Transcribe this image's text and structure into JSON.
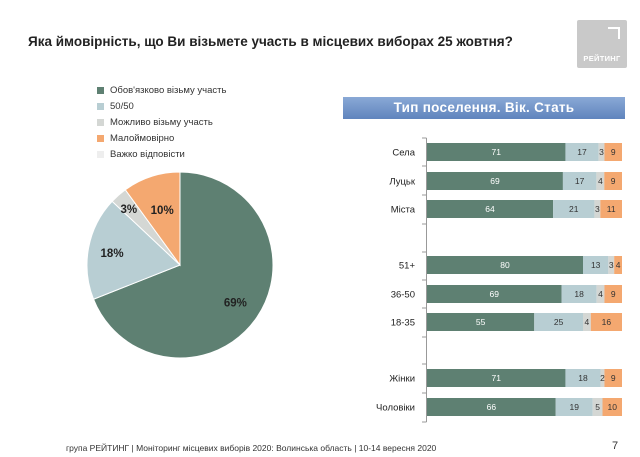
{
  "title": "Яка ймовірність, що Ви візьмете участь в місцевих виборах 25 жовтня?",
  "logo": {
    "text": "РЕЙТИНГ"
  },
  "footer": "група РЕЙТИНГ | Моніторинг місцевих виборів 2020: Волинська область | 10-14 вересня 2020",
  "page_number": "7",
  "colors": {
    "definitely": "#5e8072",
    "fifty_fifty": "#b8ced3",
    "maybe": "#d4d7d4",
    "unlikely": "#f4a870",
    "hard_to_say": "#eeeeee",
    "panel_header": "#6b8fc7"
  },
  "chart_data": [
    {
      "type": "pie",
      "legend_position": "top-left",
      "slices": [
        {
          "name": "Обов'язково візьму участь",
          "value": 69,
          "label": "69%"
        },
        {
          "name": "50/50",
          "value": 18,
          "label": "18%"
        },
        {
          "name": "Можливо візьму участь",
          "value": 3,
          "label": "3%"
        },
        {
          "name": "Малоймовірно",
          "value": 10,
          "label": "10%"
        },
        {
          "name": "Важко відповісти",
          "value": 0,
          "label": ""
        }
      ]
    },
    {
      "type": "bar",
      "stacked": true,
      "orientation": "horizontal",
      "title": "Тип поселення. Вік. Стать",
      "series_names": [
        "Обов'язково візьму участь",
        "50/50",
        "Можливо візьму участь",
        "Малоймовірно"
      ],
      "groups": [
        {
          "rows": [
            {
              "category": "Села",
              "values": [
                71,
                17,
                3,
                9
              ]
            },
            {
              "category": "Луцьк",
              "values": [
                69,
                17,
                4,
                9
              ]
            },
            {
              "category": "Міста",
              "values": [
                64,
                21,
                3,
                11
              ]
            }
          ]
        },
        {
          "rows": [
            {
              "category": "51+",
              "values": [
                80,
                13,
                3,
                4
              ]
            },
            {
              "category": "36-50",
              "values": [
                69,
                18,
                4,
                9
              ]
            },
            {
              "category": "18-35",
              "values": [
                55,
                25,
                4,
                16
              ]
            }
          ]
        },
        {
          "rows": [
            {
              "category": "Жінки",
              "values": [
                71,
                18,
                2,
                9
              ]
            },
            {
              "category": "Чоловіки",
              "values": [
                66,
                19,
                5,
                10
              ]
            }
          ]
        }
      ]
    }
  ]
}
